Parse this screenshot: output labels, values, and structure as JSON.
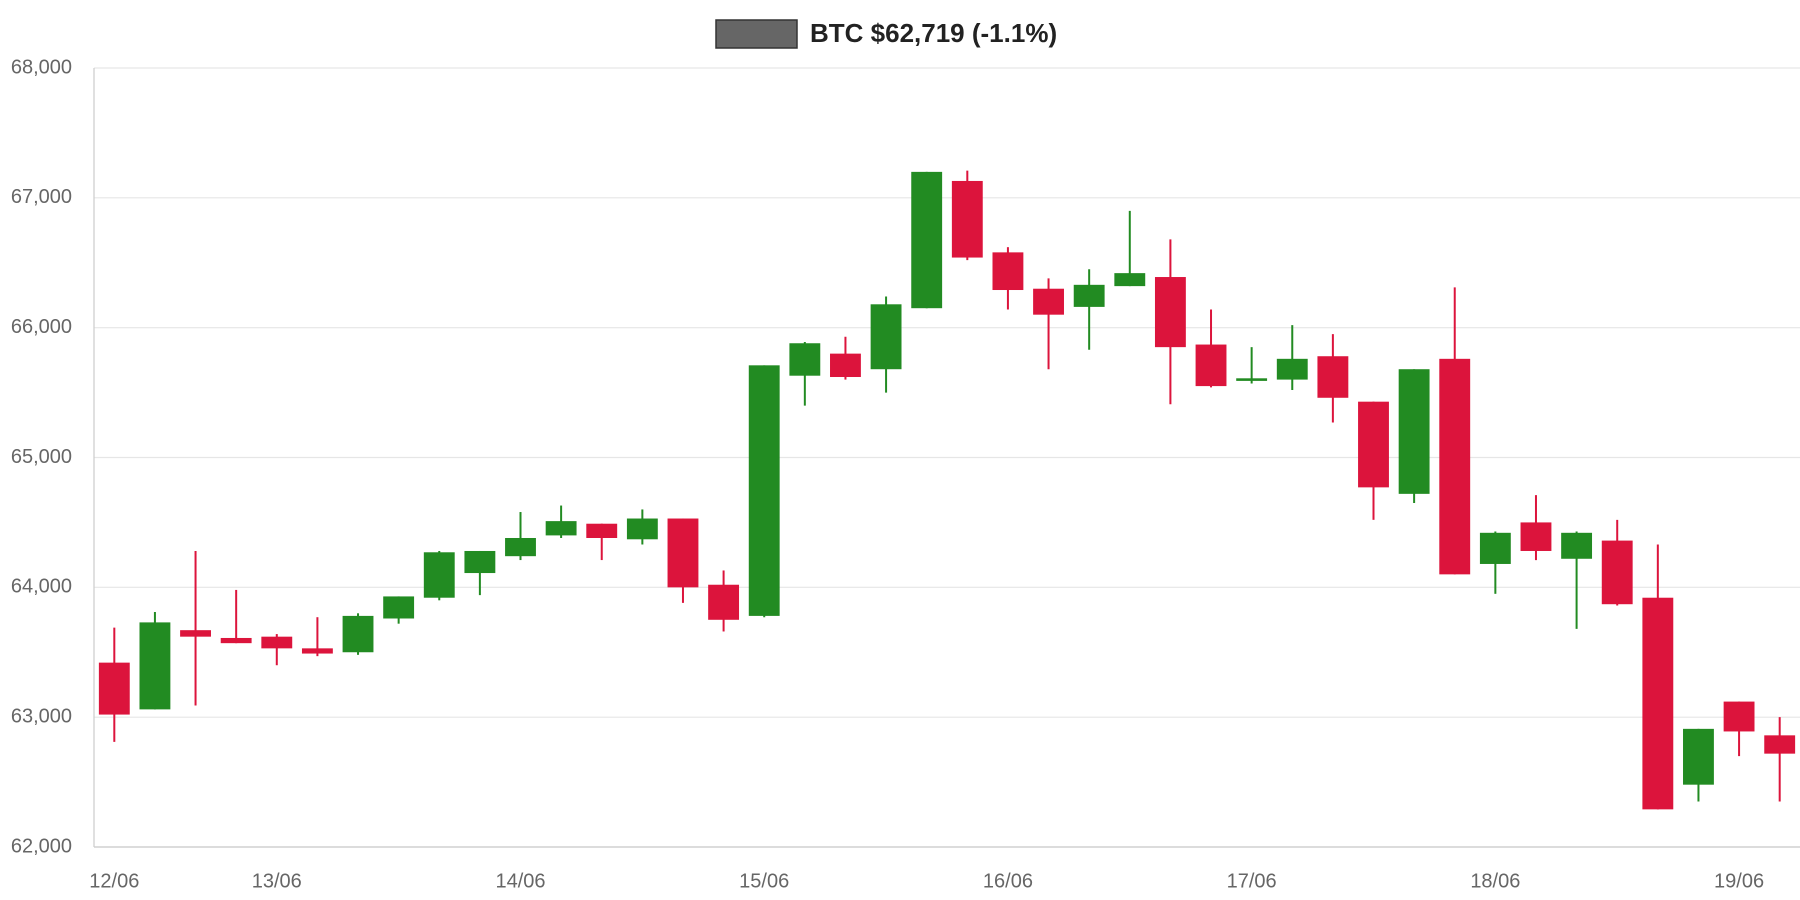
{
  "chart_data": {
    "type": "candlestick",
    "categories": [
      "12/06",
      null,
      null,
      null,
      "13/06",
      null,
      null,
      null,
      null,
      null,
      "14/06",
      null,
      null,
      null,
      null,
      null,
      "15/06",
      null,
      null,
      null,
      null,
      null,
      "16/06",
      null,
      null,
      null,
      null,
      null,
      "17/06",
      null,
      null,
      null,
      null,
      null,
      "18/06",
      null,
      null,
      null,
      null,
      null,
      "19/06",
      null
    ],
    "series": [
      {
        "name": "BTC $62,719 (-1.1%)",
        "color": "#666666",
        "up_color": "#228b22",
        "down_color": "#dc143c",
        "open": [
          63420,
          63060,
          63670,
          63610,
          63620,
          63530,
          63500,
          63760,
          63920,
          64110,
          64240,
          64400,
          64490,
          64370,
          64530,
          64020,
          63780,
          65630,
          65800,
          65680,
          66150,
          67130,
          66580,
          66300,
          66160,
          66320,
          66390,
          65870,
          65590,
          65600,
          65780,
          65430,
          64720,
          65760,
          64180,
          64500,
          64220,
          64360,
          63920,
          62480,
          63120,
          62860
        ],
        "high": [
          63690,
          63810,
          64280,
          63980,
          63640,
          63770,
          63800,
          63930,
          64280,
          64280,
          64580,
          64630,
          64490,
          64600,
          64530,
          64130,
          65710,
          65890,
          65930,
          66240,
          67200,
          67210,
          66620,
          66380,
          66450,
          66900,
          66680,
          66140,
          65850,
          66020,
          65950,
          65430,
          65680,
          66310,
          64430,
          64710,
          64430,
          64520,
          64330,
          62910,
          63120,
          63000
        ],
        "low": [
          62810,
          63060,
          63090,
          63570,
          63400,
          63470,
          63480,
          63720,
          63900,
          63940,
          64210,
          64380,
          64210,
          64330,
          63880,
          63660,
          63770,
          65400,
          65600,
          65500,
          66150,
          66520,
          66140,
          65680,
          65830,
          66320,
          65410,
          65540,
          65570,
          65520,
          65270,
          64520,
          64650,
          64100,
          63950,
          64210,
          63680,
          63860,
          62290,
          62350,
          62700,
          62350
        ],
        "close": [
          63020,
          63730,
          63620,
          63570,
          63530,
          63490,
          63780,
          63930,
          64270,
          64280,
          64380,
          64510,
          64380,
          64530,
          64000,
          63750,
          65710,
          65880,
          65620,
          66180,
          67200,
          66540,
          66290,
          66100,
          66330,
          66420,
          65850,
          65550,
          65610,
          65760,
          65460,
          64770,
          65680,
          64100,
          64420,
          64280,
          64420,
          63870,
          62290,
          62910,
          62890,
          62719
        ]
      }
    ],
    "ylim": [
      62000,
      68000
    ],
    "yticks": [
      {
        "value": 62000,
        "label": "62,000"
      },
      {
        "value": 63000,
        "label": "63,000"
      },
      {
        "value": 64000,
        "label": "64,000"
      },
      {
        "value": 65000,
        "label": "65,000"
      },
      {
        "value": 66000,
        "label": "66,000"
      },
      {
        "value": 67000,
        "label": "67,000"
      },
      {
        "value": 68000,
        "label": "68,000"
      }
    ],
    "grid": true
  }
}
